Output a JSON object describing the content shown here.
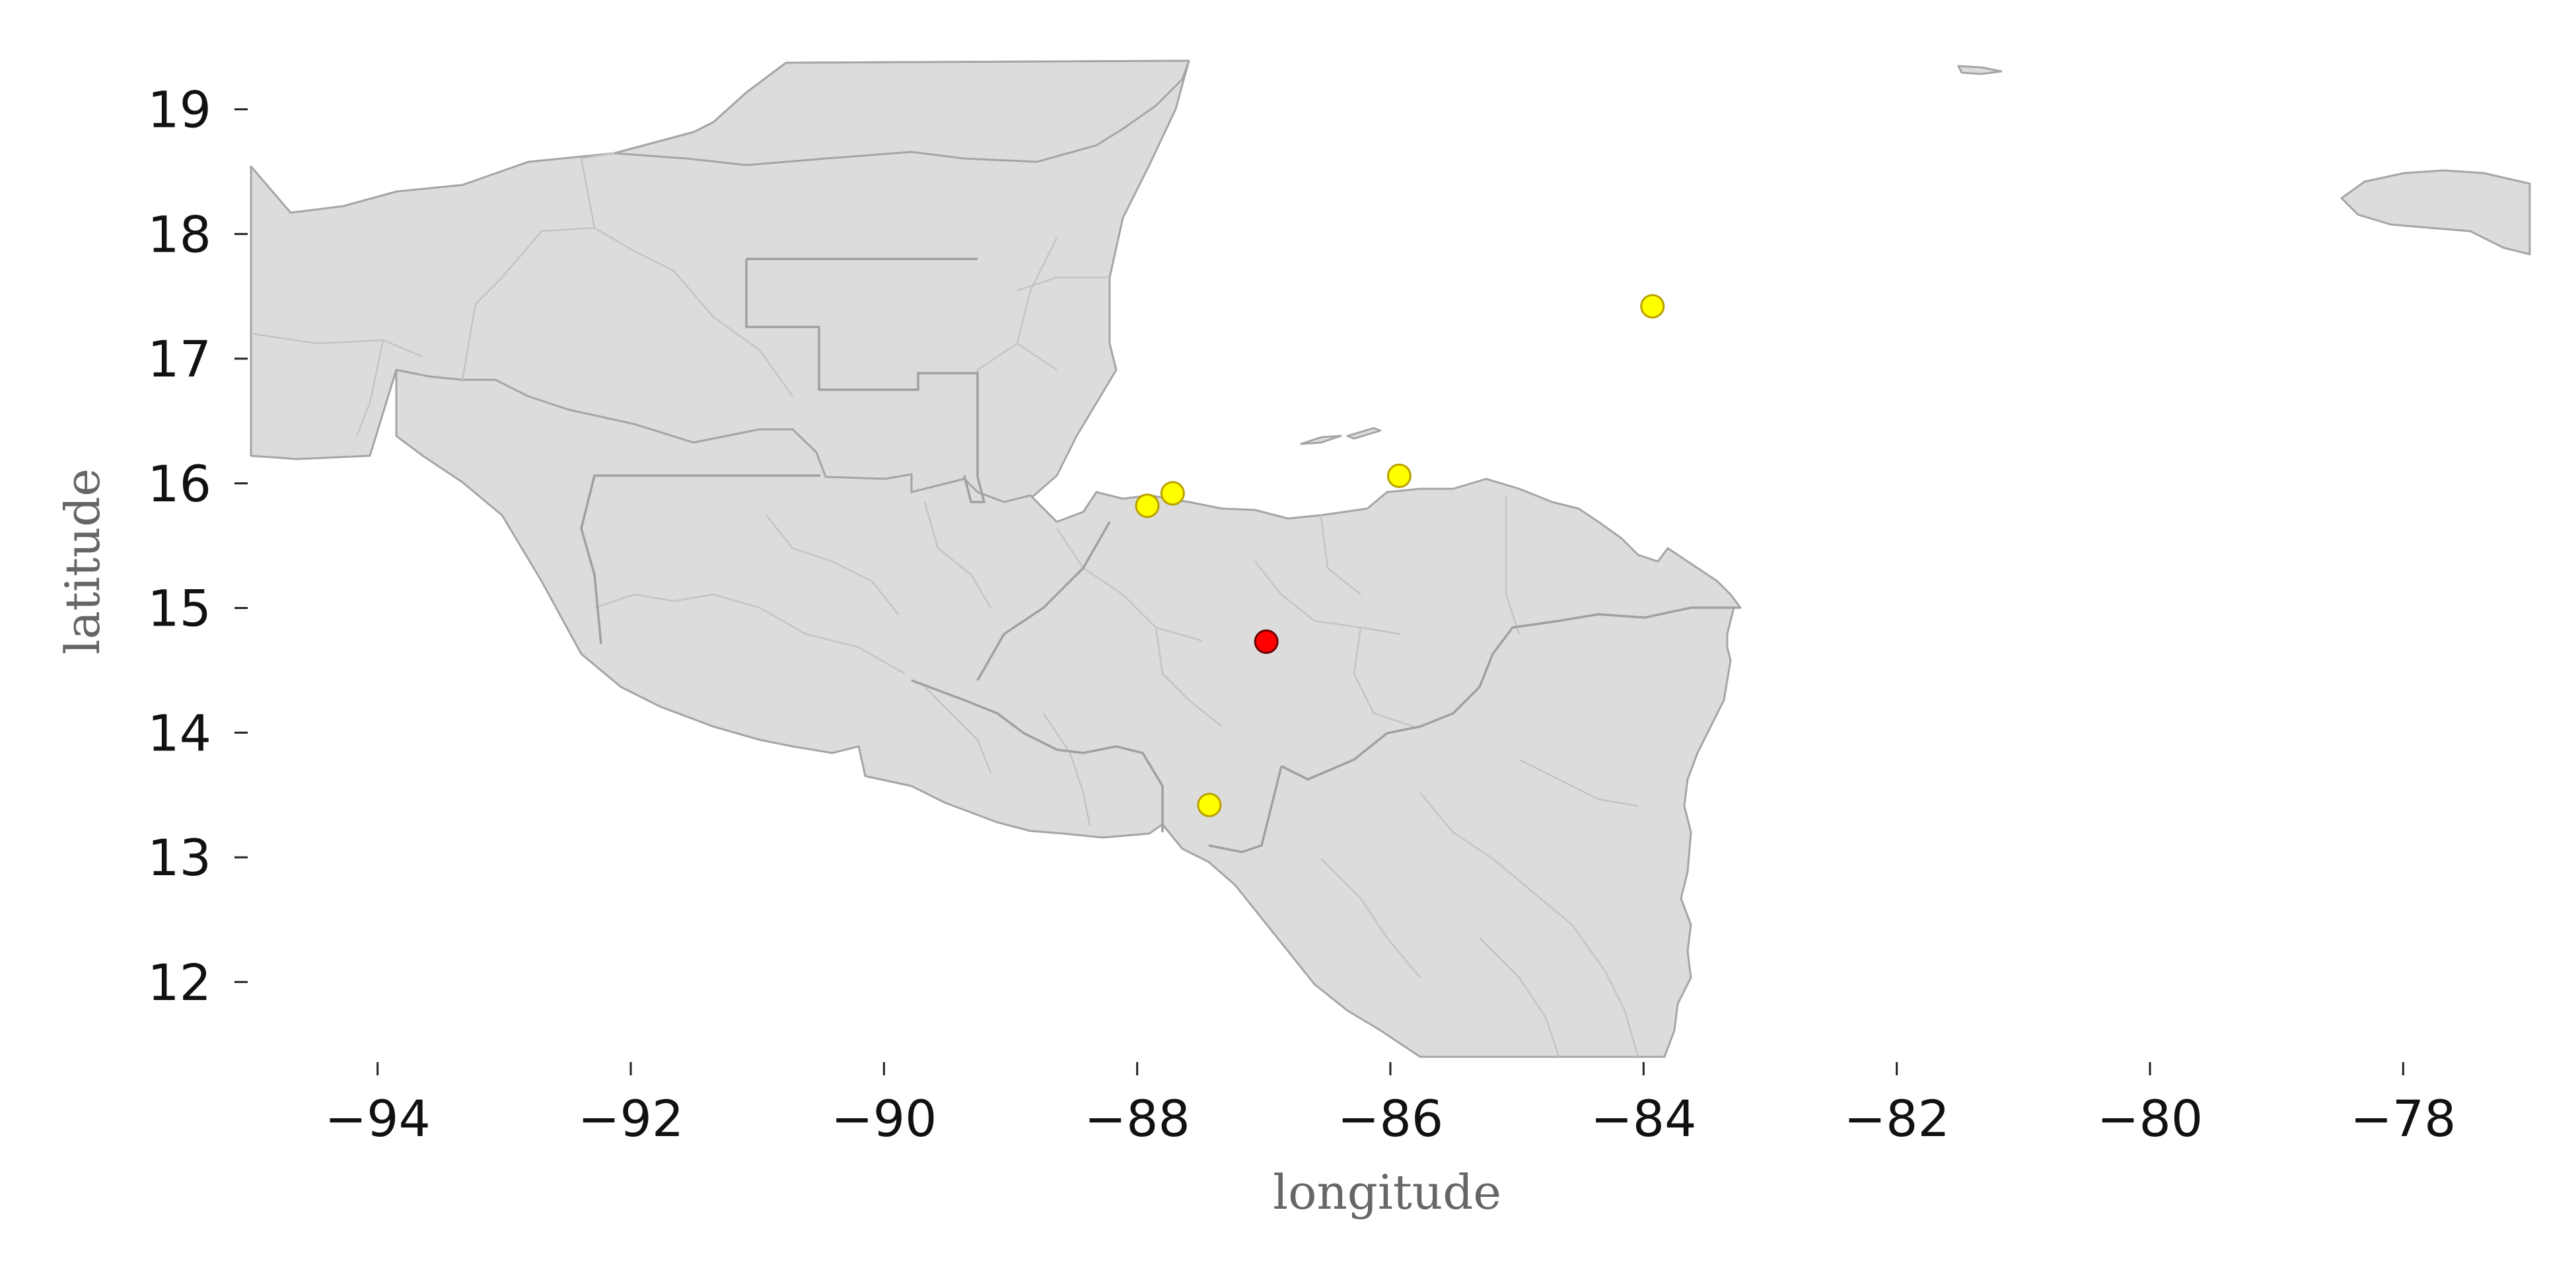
{
  "map": {
    "xlabel": "longitude",
    "ylabel": "latitude",
    "xticks": [
      "−94",
      "−92",
      "−90",
      "−88",
      "−86",
      "−84",
      "−82",
      "−80",
      "−78"
    ],
    "yticks": [
      "19",
      "18",
      "17",
      "16",
      "15",
      "14",
      "13",
      "12"
    ],
    "xlim": [
      -95,
      -77
    ],
    "ylim": [
      11.4,
      19.4
    ],
    "background_color": "#ffffff",
    "land_color": "#dcdcdc",
    "border_color": "#a0a0a0",
    "points": [
      {
        "lon": -86.98,
        "lat": 14.73,
        "color": "#ff0000",
        "role": "primary"
      },
      {
        "lon": -87.92,
        "lat": 15.82,
        "color": "#ffff00",
        "role": "secondary"
      },
      {
        "lon": -87.72,
        "lat": 15.92,
        "color": "#ffff00",
        "role": "secondary"
      },
      {
        "lon": -85.93,
        "lat": 16.06,
        "color": "#ffff00",
        "role": "secondary"
      },
      {
        "lon": -83.93,
        "lat": 17.42,
        "color": "#ffff00",
        "role": "secondary"
      },
      {
        "lon": -87.43,
        "lat": 13.42,
        "color": "#ffff00",
        "role": "secondary"
      }
    ]
  }
}
